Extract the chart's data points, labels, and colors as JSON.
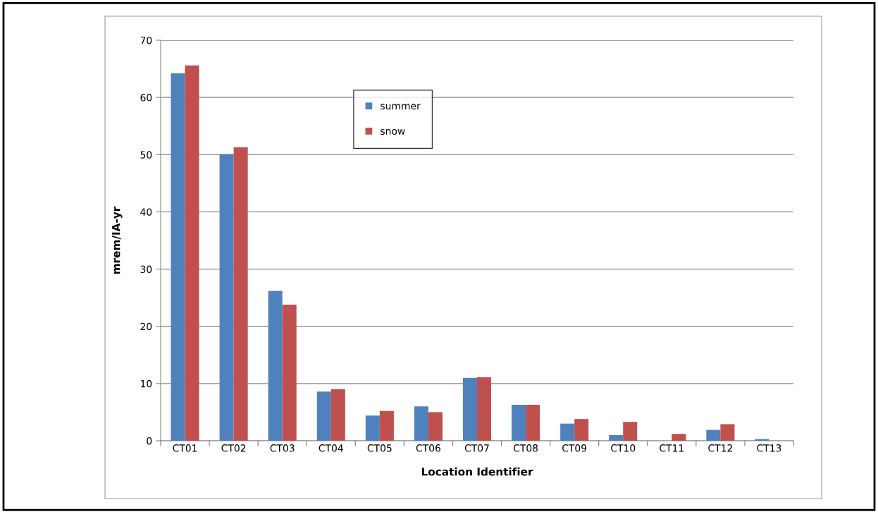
{
  "chart_data": {
    "type": "bar",
    "xlabel": "Location Identifier",
    "ylabel": "mrem/IA-yr",
    "categories": [
      "CT01",
      "CT02",
      "CT03",
      "CT04",
      "CT05",
      "CT06",
      "CT07",
      "CT08",
      "CT09",
      "CT10",
      "CT11",
      "CT12",
      "CT13"
    ],
    "series": [
      {
        "name": "summer",
        "color": "#4f81bd",
        "values": [
          64.2,
          50.1,
          26.2,
          8.6,
          4.4,
          6.0,
          11.0,
          6.3,
          3.0,
          1.0,
          0,
          1.9,
          0.3
        ]
      },
      {
        "name": "snow",
        "color": "#c0504d",
        "values": [
          65.6,
          51.3,
          23.8,
          9.0,
          5.2,
          5.0,
          11.1,
          6.3,
          3.8,
          3.3,
          1.2,
          2.9,
          0
        ]
      }
    ],
    "ylim": [
      0,
      70
    ],
    "yticks": [
      0,
      10,
      20,
      30,
      40,
      50,
      60,
      70
    ],
    "grid": "y",
    "legend": "top"
  }
}
